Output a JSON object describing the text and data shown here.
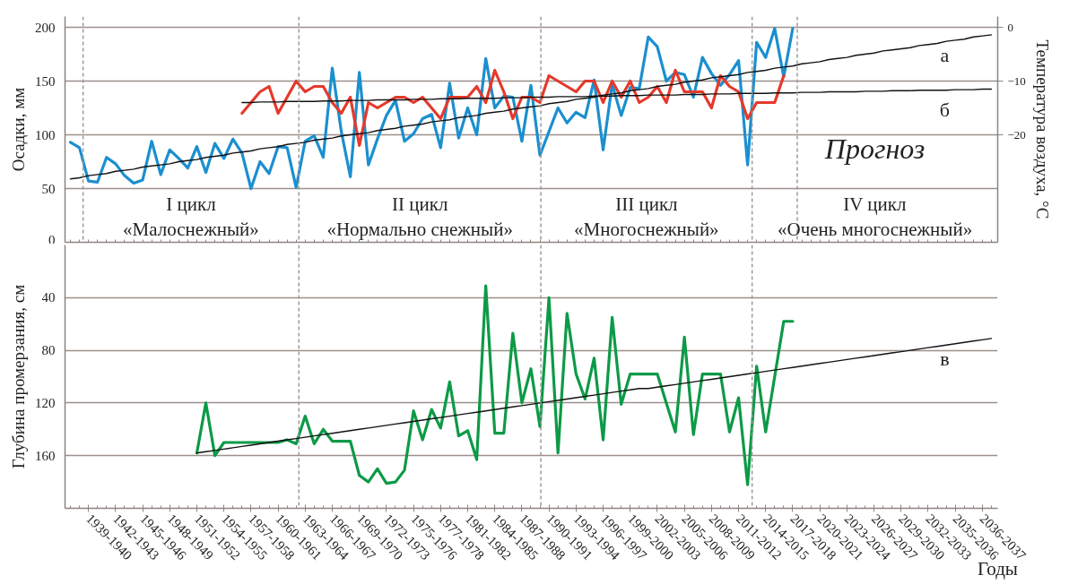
{
  "chart_data": [
    {
      "type": "line",
      "ylabel": "Осадки, мм",
      "y2label": "Температура воздуха, °С",
      "categories": [
        null,
        null,
        null,
        null,
        null,
        null,
        null,
        null,
        null,
        null,
        null,
        null,
        null,
        null,
        null,
        null,
        null,
        null,
        null,
        null,
        null,
        null,
        null,
        null,
        null,
        null,
        null,
        null,
        null,
        null,
        null,
        null,
        null,
        null,
        null,
        null,
        null,
        null,
        null,
        null,
        null,
        null,
        null,
        null,
        null,
        null,
        null,
        null,
        null,
        null,
        null,
        null,
        null,
        null,
        null,
        null,
        null,
        null,
        null,
        null,
        null,
        null,
        null,
        null,
        null,
        null,
        null,
        null,
        null,
        null,
        null,
        null,
        null,
        null,
        null,
        null,
        null,
        null,
        null,
        null,
        null,
        null,
        null,
        null,
        null,
        null,
        null,
        null,
        null,
        null,
        null,
        null,
        null,
        null,
        null,
        null,
        null,
        null,
        null,
        null,
        null,
        null,
        null
      ],
      "ylim": [
        0,
        210
      ],
      "yticks": [
        0,
        50,
        100,
        150,
        200
      ],
      "y2lim": [
        -40,
        2
      ],
      "y2ticks": [
        -20,
        -10,
        0
      ],
      "tick_labels": "y",
      "grid": "y",
      "series": [
        {
          "color": "#1b8fcf",
          "values": [
            93,
            88,
            57,
            56,
            79,
            73,
            62,
            55,
            58,
            94,
            63,
            86,
            78,
            69,
            89,
            65,
            92,
            78,
            96,
            83,
            50,
            75,
            64,
            89,
            88,
            51,
            94,
            99,
            79,
            162,
            103,
            61,
            158,
            72,
            96,
            118,
            132,
            94,
            101,
            115,
            119,
            88,
            148,
            97,
            125,
            100,
            171,
            125,
            136,
            135,
            94,
            146,
            81,
            103,
            125,
            111,
            121,
            116,
            151,
            86,
            147,
            118,
            144,
            143,
            191,
            182,
            150,
            158,
            156,
            135,
            172,
            157,
            146,
            156,
            169,
            72,
            186,
            172,
            199,
            154,
            199,
            null,
            null,
            null,
            null,
            null,
            null,
            null,
            null,
            null,
            null,
            null,
            null,
            null,
            null,
            null,
            null,
            null,
            null,
            null,
            null,
            null,
            null
          ]
        },
        {
          "color": "#e5392b",
          "axis": "y2",
          "values": [
            null,
            null,
            null,
            null,
            null,
            null,
            null,
            null,
            null,
            null,
            null,
            null,
            null,
            null,
            null,
            null,
            null,
            null,
            null,
            -16,
            -14,
            -12,
            -11,
            -16,
            -13,
            -10,
            -12,
            -11,
            -11,
            -14,
            -16,
            -13,
            -22,
            -14,
            -15,
            -14,
            -13,
            -13,
            -14,
            -13,
            -15,
            -17,
            -13,
            -13,
            -13,
            -11,
            -14,
            -8,
            -12,
            -17,
            -13,
            -13,
            -14,
            -9,
            -10,
            -11,
            -12,
            -10,
            -10,
            -14,
            -10,
            -13,
            -10,
            -14,
            -13,
            -11,
            -14,
            -8,
            -12,
            -12,
            -12,
            -15,
            -9,
            -11,
            -12,
            -17,
            -14,
            -14,
            -14,
            -9,
            null,
            null,
            null,
            null,
            null,
            null,
            null,
            null,
            null,
            null,
            null,
            null,
            null,
            null,
            null,
            null,
            null,
            null,
            null,
            null,
            null,
            null,
            null
          ]
        },
        {
          "name": "а",
          "color": "#111111",
          "values": [
            59,
            60,
            62,
            63,
            64,
            66,
            67,
            68,
            70,
            71,
            72,
            73,
            75,
            76,
            77,
            79,
            80,
            81,
            83,
            84,
            85,
            87,
            88,
            89,
            91,
            92,
            93,
            95,
            96,
            97,
            99,
            100,
            101,
            102,
            104,
            105,
            106,
            108,
            109,
            110,
            112,
            113,
            114,
            116,
            117,
            118,
            120,
            121,
            122,
            124,
            125,
            126,
            127,
            129,
            130,
            131,
            133,
            134,
            135,
            137,
            138,
            139,
            141,
            142,
            143,
            145,
            146,
            147,
            149,
            150,
            151,
            153,
            154,
            155,
            156,
            158,
            159,
            160,
            162,
            163,
            164,
            166,
            167,
            168,
            170,
            171,
            172,
            174,
            175,
            176,
            178,
            179,
            180,
            181,
            183,
            184,
            185,
            187,
            188,
            189,
            191,
            192,
            193
          ]
        },
        {
          "name": "б",
          "color": "#111111",
          "axis": "y2",
          "values": [
            null,
            null,
            null,
            null,
            null,
            null,
            null,
            null,
            null,
            null,
            null,
            null,
            null,
            null,
            null,
            null,
            null,
            null,
            null,
            -14.0,
            -14.0,
            -13.9,
            -13.9,
            -13.9,
            -13.8,
            -13.8,
            -13.8,
            -13.8,
            -13.7,
            -13.7,
            -13.7,
            -13.6,
            -13.6,
            -13.6,
            -13.5,
            -13.5,
            -13.5,
            -13.5,
            -13.4,
            -13.4,
            -13.4,
            -13.3,
            -13.3,
            -13.3,
            -13.2,
            -13.2,
            -13.2,
            -13.2,
            -13.1,
            -13.1,
            -13.1,
            -13.0,
            -13.0,
            -13.0,
            -12.9,
            -12.9,
            -12.9,
            -12.9,
            -12.8,
            -12.8,
            -12.8,
            -12.7,
            -12.7,
            -12.7,
            -12.6,
            -12.6,
            -12.6,
            -12.6,
            -12.5,
            -12.5,
            -12.5,
            -12.4,
            -12.4,
            -12.4,
            -12.3,
            -12.3,
            -12.3,
            -12.3,
            -12.2,
            -12.2,
            -12.2,
            -12.1,
            -12.1,
            -12.1,
            -12.0,
            -12.0,
            -12.0,
            -12.0,
            -11.9,
            -11.9,
            -11.9,
            -11.8,
            -11.8,
            -11.8,
            -11.7,
            -11.7,
            -11.7,
            -11.7,
            -11.6,
            -11.6,
            -11.6,
            -11.5,
            -11.5
          ]
        }
      ],
      "annotations": [
        "I цикл",
        "«Малоснежный»",
        "II цикл",
        "«Нормально снежный»",
        "III цикл",
        "«Многоснежный»",
        "IV цикл",
        "«Очень многоснежный»",
        "Прогноз"
      ]
    },
    {
      "type": "line",
      "ylabel": "Глубина промерзания, см",
      "xlabel": "Годы",
      "categories": [
        null,
        null,
        "1939-1940",
        null,
        null,
        "1942-1943",
        null,
        null,
        "1945-1946",
        null,
        null,
        "1948-1949",
        null,
        null,
        "1951-1952",
        null,
        null,
        "1954-1955",
        null,
        null,
        "1957-1958",
        null,
        null,
        "1960-1961",
        null,
        null,
        "1963-1964",
        null,
        null,
        "1966-1967",
        null,
        null,
        "1969-1970",
        null,
        null,
        "1972-1973",
        null,
        null,
        "1975-1976",
        null,
        null,
        "1977-1978",
        null,
        null,
        "1981-1982",
        null,
        null,
        "1984-1985",
        null,
        null,
        "1987-1988",
        null,
        null,
        "1990-1991",
        null,
        null,
        "1993-1994",
        null,
        null,
        "1996-1997",
        null,
        null,
        "1999-2000",
        null,
        null,
        "2002-2003",
        null,
        null,
        "2005-2006",
        null,
        null,
        "2008-2009",
        null,
        null,
        "2011-2012",
        null,
        null,
        "2014-2015",
        null,
        null,
        "2017-2018",
        null,
        null,
        "2020-2021",
        null,
        null,
        "2023-2024",
        null,
        null,
        "2026-2027",
        null,
        null,
        "2029-2030",
        null,
        null,
        "2032-2033",
        null,
        null,
        "2035-2036",
        null,
        null,
        "2036-2037",
        null
      ],
      "ylim": [
        200,
        0
      ],
      "yticks": [
        40,
        80,
        120,
        160
      ],
      "grid": "y",
      "series": [
        {
          "color": "#0d9a47",
          "values": [
            null,
            null,
            null,
            null,
            null,
            null,
            null,
            null,
            null,
            null,
            null,
            null,
            null,
            null,
            158,
            120,
            160,
            150,
            150,
            150,
            150,
            150,
            150,
            150,
            148,
            151,
            130,
            151,
            140,
            149,
            149,
            149,
            175,
            180,
            170,
            181,
            180,
            171,
            126,
            148,
            125,
            139,
            104,
            145,
            141,
            163,
            31,
            143,
            143,
            67,
            120,
            94,
            138,
            40,
            158,
            52,
            98,
            117,
            86,
            148,
            55,
            121,
            98,
            98,
            98,
            98,
            120,
            142,
            70,
            144,
            98,
            98,
            98,
            142,
            116,
            182,
            92,
            142,
            100,
            58,
            58,
            null,
            null,
            null,
            null,
            null,
            null,
            null,
            null,
            null,
            null,
            null,
            null,
            null,
            null,
            null,
            null,
            null,
            null,
            null,
            null,
            null,
            null
          ]
        },
        {
          "name": "в",
          "color": "#111111",
          "values": [
            null,
            null,
            null,
            null,
            null,
            null,
            null,
            null,
            null,
            null,
            null,
            null,
            null,
            null,
            158,
            157,
            156,
            155,
            154,
            153,
            152,
            151,
            150,
            149,
            148,
            147,
            146,
            145,
            144,
            143,
            142,
            141,
            140,
            139,
            138,
            137,
            136,
            135,
            134,
            133,
            132,
            131,
            130,
            129,
            128,
            127,
            126,
            125,
            124,
            123,
            122,
            121,
            120,
            119,
            118,
            117,
            116,
            115,
            114,
            113,
            112,
            111,
            110,
            109,
            109,
            108,
            107,
            106,
            105,
            104,
            103,
            102,
            101,
            100,
            99,
            98,
            97,
            96,
            95,
            94,
            93,
            92,
            91,
            90,
            89,
            88,
            87,
            86,
            85,
            84,
            83,
            82,
            81,
            80,
            79,
            78,
            77,
            76,
            75,
            74,
            73,
            72,
            71
          ]
        }
      ]
    }
  ]
}
